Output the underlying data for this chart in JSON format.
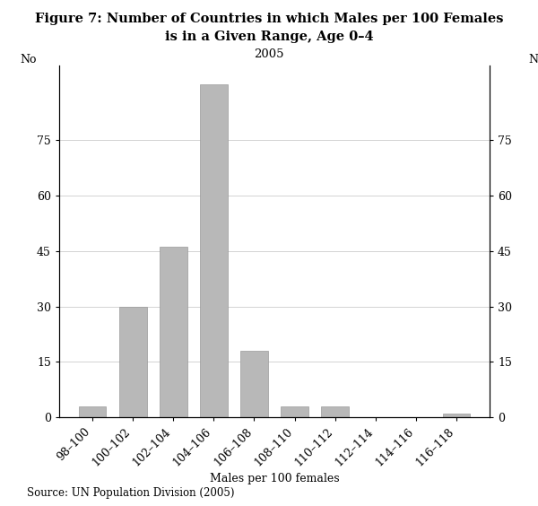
{
  "title_line1": "Figure 7: Number of Countries in which Males per 100 Females",
  "title_line2": "is in a Given Range, Age 0–4",
  "subtitle": "2005",
  "categories": [
    "98–100",
    "100–102",
    "102–104",
    "104–106",
    "106–108",
    "108–110",
    "110–112",
    "112–114",
    "114–116",
    "116–118"
  ],
  "values": [
    3,
    30,
    46,
    90,
    18,
    3,
    3,
    0,
    0,
    1
  ],
  "bar_color": "#b8b8b8",
  "bar_edgecolor": "#999999",
  "xlabel": "Males per 100 females",
  "ylabel_left": "No",
  "ylabel_right": "No",
  "yticks": [
    0,
    15,
    30,
    45,
    60,
    75
  ],
  "ylim": [
    0,
    95
  ],
  "background_color": "#ffffff",
  "source_text": "Source: UN Population Division (2005)",
  "title_fontsize": 10.5,
  "subtitle_fontsize": 9.5,
  "axis_label_fontsize": 9,
  "tick_fontsize": 9,
  "source_fontsize": 8.5
}
